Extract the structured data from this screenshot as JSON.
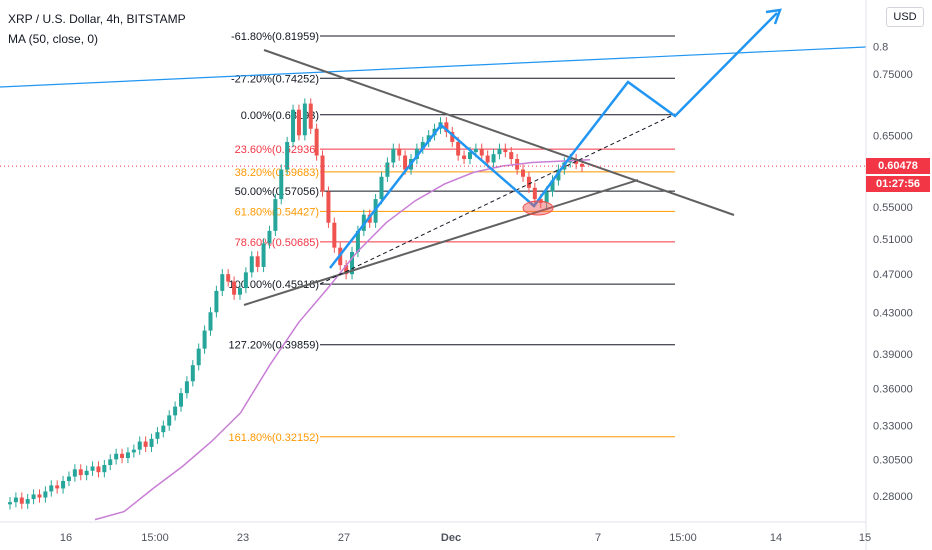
{
  "legend": {
    "title": "XRP / U.S. Dollar, 4h, BITSTAMP",
    "indicator": "MA (50, close, 0)"
  },
  "currency_button": "USD",
  "last_price": {
    "value": "0.60478",
    "countdown": "01:27:56",
    "color": "#f23645"
  },
  "colors": {
    "up": "#26a69a",
    "down": "#ef5350",
    "ma": "#c97ed6",
    "trendline": "#616161",
    "projection": "#2196f3",
    "fib_black": "#131722",
    "fib_red": "#f23645",
    "fib_orange": "#ff9800"
  },
  "chart_data": {
    "type": "candlestick",
    "symbol": "XRP / U.S. Dollar",
    "interval": "4h",
    "exchange": "BITSTAMP",
    "y_scale": "log",
    "ylim": [
      0.265,
      0.86
    ],
    "y_ticks": [
      "0.28000",
      "0.30500",
      "0.33000",
      "0.36000",
      "0.39000",
      "0.43000",
      "0.47000",
      "0.51000",
      "0.55000",
      "0.60478",
      "0.65000",
      "0.75000",
      "0.8"
    ],
    "x_ticks": [
      "16",
      "15:00",
      "23",
      "27",
      "Dec",
      "7",
      "15:00",
      "14",
      "15"
    ],
    "fib_levels": [
      {
        "label": "-61.80%(0.81959)",
        "value": 0.81959,
        "color": "fib_black"
      },
      {
        "label": "-27.20%(0.74252)",
        "value": 0.74252,
        "color": "fib_black"
      },
      {
        "label": "0.00%(0.68193)",
        "value": 0.68193,
        "color": "fib_black"
      },
      {
        "label": "23.60%(0.62936)",
        "value": 0.62936,
        "color": "fib_red"
      },
      {
        "label": "38.20%(0.59683)",
        "value": 0.59683,
        "color": "fib_orange"
      },
      {
        "label": "50.00%(0.57056)",
        "value": 0.57056,
        "color": "fib_black"
      },
      {
        "label": "61.80%(0.54427)",
        "value": 0.54427,
        "color": "fib_orange"
      },
      {
        "label": "78.60%(0.50685)",
        "value": 0.50685,
        "color": "fib_red"
      },
      {
        "label": "100.00%(0.45918)",
        "value": 0.45918,
        "color": "fib_black"
      },
      {
        "label": "127.20%(0.39859)",
        "value": 0.39859,
        "color": "fib_black"
      },
      {
        "label": "161.80%(0.32152)",
        "value": 0.32152,
        "color": "fib_orange"
      }
    ],
    "candles_close": [
      0.276,
      0.279,
      0.275,
      0.278,
      0.281,
      0.279,
      0.283,
      0.287,
      0.285,
      0.29,
      0.293,
      0.298,
      0.294,
      0.297,
      0.3,
      0.296,
      0.301,
      0.305,
      0.309,
      0.306,
      0.31,
      0.312,
      0.318,
      0.314,
      0.32,
      0.325,
      0.33,
      0.338,
      0.345,
      0.356,
      0.366,
      0.38,
      0.395,
      0.412,
      0.43,
      0.452,
      0.47,
      0.462,
      0.448,
      0.455,
      0.472,
      0.49,
      0.478,
      0.505,
      0.52,
      0.56,
      0.6,
      0.64,
      0.69,
      0.65,
      0.7,
      0.66,
      0.62,
      0.57,
      0.53,
      0.5,
      0.48,
      0.47,
      0.495,
      0.52,
      0.54,
      0.53,
      0.56,
      0.59,
      0.61,
      0.63,
      0.62,
      0.6,
      0.615,
      0.63,
      0.64,
      0.65,
      0.66,
      0.67,
      0.655,
      0.64,
      0.62,
      0.615,
      0.625,
      0.63,
      0.62,
      0.61,
      0.622,
      0.63,
      0.625,
      0.615,
      0.6,
      0.59,
      0.575,
      0.56,
      0.555,
      0.57,
      0.585,
      0.6,
      0.61,
      0.615,
      0.608,
      0.604
    ],
    "ma_path_points": [
      [
        0.29,
        0.265
      ],
      [
        0.3,
        0.27
      ],
      [
        0.31,
        0.285
      ],
      [
        0.32,
        0.3
      ],
      [
        0.35,
        0.318
      ],
      [
        0.38,
        0.34
      ],
      [
        0.42,
        0.38
      ],
      [
        0.45,
        0.42
      ],
      [
        0.48,
        0.455
      ],
      [
        0.51,
        0.495
      ],
      [
        0.54,
        0.53
      ],
      [
        0.57,
        0.558
      ],
      [
        0.6,
        0.58
      ],
      [
        0.64,
        0.596
      ],
      [
        0.68,
        0.605
      ],
      [
        0.72,
        0.61
      ],
      [
        0.76,
        0.612
      ],
      [
        0.8,
        0.614
      ]
    ],
    "annotations": [
      {
        "type": "line",
        "name": "upper-trendline"
      },
      {
        "type": "line",
        "name": "lower-trendline"
      },
      {
        "type": "polyline",
        "name": "projection-path"
      },
      {
        "type": "line",
        "name": "channel-line"
      },
      {
        "type": "ellipse",
        "name": "support-marker"
      }
    ],
    "grid": false
  }
}
